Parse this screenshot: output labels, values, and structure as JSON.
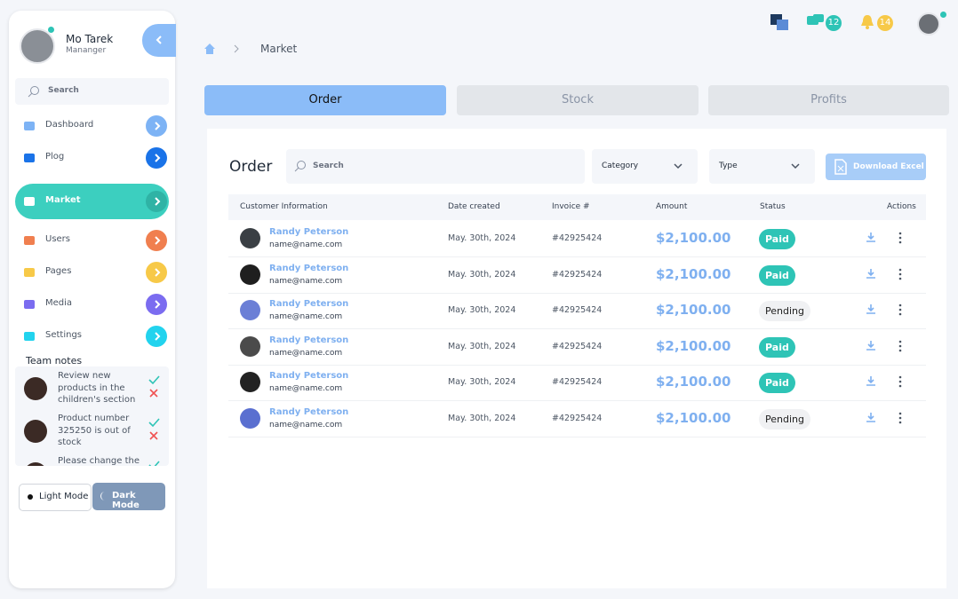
{
  "user": {
    "name": "Mo Tarek",
    "role": "Mananger"
  },
  "sidebar": {
    "search": "Search",
    "nav": [
      "Dashboard",
      "Plog",
      "Market",
      "Users",
      "Pages",
      "Media",
      "Settings"
    ],
    "team_notes": {
      "title": "Team notes",
      "notes": [
        "Review new products in the children's section",
        "Product number 325250 is out of stock",
        "Please change the"
      ]
    },
    "modes": [
      "Light Mode",
      "Dark Mode"
    ]
  },
  "header": {
    "messages": "12",
    "notifications": "14",
    "breadcrumb": "Market"
  },
  "tabs": [
    "Order",
    "Stock",
    "Profits"
  ],
  "panel": {
    "title": "Order",
    "search": "Search",
    "filters": [
      "Category",
      "Type"
    ],
    "download": "Download Excel"
  },
  "table": {
    "columns": [
      "Customer Information",
      "Date created",
      "Invoice #",
      "Amount",
      "Status",
      "Actions"
    ],
    "rows": [
      [
        "Randy Peterson",
        "name@name.com",
        "May. 30th, 2024",
        "#42925424",
        "$2,100.00",
        "Paid"
      ],
      [
        "Randy Peterson",
        "name@name.com",
        "May. 30th, 2024",
        "#42925424",
        "$2,100.00",
        "Paid"
      ],
      [
        "Randy Peterson",
        "name@name.com",
        "May. 30th, 2024",
        "#42925424",
        "$2,100.00",
        "Pending"
      ],
      [
        "Randy Peterson",
        "name@name.com",
        "May. 30th, 2024",
        "#42925424",
        "$2,100.00",
        "Paid"
      ],
      [
        "Randy Peterson",
        "name@name.com",
        "May. 30th, 2024",
        "#42925424",
        "$2,100.00",
        "Paid"
      ],
      [
        "Randy Peterson",
        "name@name.com",
        "May. 30th, 2024",
        "#42925424",
        "$2,100.00",
        "Pending"
      ]
    ]
  }
}
